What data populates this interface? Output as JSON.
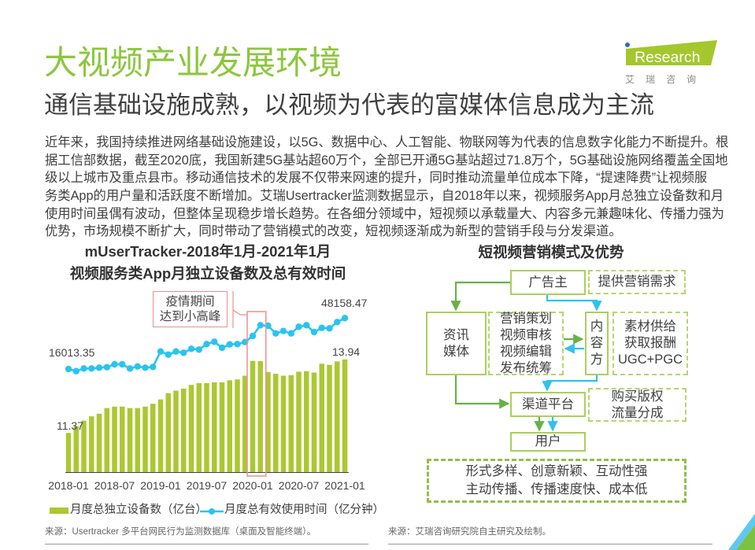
{
  "header": {
    "title": "大视频产业发展环境",
    "subtitle": "通信基础设施成熟，以视频为代表的富媒体信息成为主流"
  },
  "logo": {
    "prefix": "i",
    "brand": "Research",
    "cn": "艾瑞咨询"
  },
  "body": {
    "lines": [
      "近年来，我国持续推进网络基础设施建设，以5G、数据中心、人工智能、物联网等为代表的信息数字化能力不断提升。根",
      "据工信部数据，截至2020底，我国新建5G基站超60万个，全部已开通5G基站超过71.8万个，5G基础设施网络覆盖全国地",
      "级以上城市及重点县市。移动通信技术的发展不仅带来网速的提升，同时推动流量单位成本下降，“提速降费”让视频服",
      "务类App的用户量和活跃度不断增加。艾瑞Usertracker监测数据显示，自2018年以来，视频服务App月总独立设备数和月",
      "使用时间虽偶有波动，但整体呈现稳步增长趋势。在各细分领域中，短视频以承载量大、内容多元兼趣味化、传播力强为",
      "优势，市场规模不断扩大，同时带动了营销模式的改变，短视频逐渐成为新型的营销手段与分发渠道。"
    ]
  },
  "left_chart": {
    "title_line1": "mUserTracker-2018年1月-2021年1月",
    "title_line2": "视频服务类App月独立设备数及总有效时间",
    "annotation_line1": "疫情期间",
    "annotation_line2": "达到小高峰",
    "labels": {
      "line_first": "16013.35",
      "line_last": "48158.47",
      "bar_first": "11.37",
      "bar_last": "13.94"
    },
    "legend": {
      "bars": "月度总独立设备数（亿台）",
      "line": "月度总有效使用时间（亿分钟）"
    },
    "source": "来源：Usertracker 多平台网民行为监测数据库（桌面及智能终端）。"
  },
  "right_diagram": {
    "title": "短视频营销模式及优势",
    "advertiser": "广告主",
    "advertiser_note": "提供营销需求",
    "media": [
      "资讯",
      "媒体"
    ],
    "media_note": [
      "营销策划",
      "视频审核",
      "视频编辑",
      "发布统筹"
    ],
    "content": [
      "内",
      "容",
      "方"
    ],
    "content_note": [
      "素材供给",
      "获取报酬",
      "UGC+PGC"
    ],
    "channel": "渠道平台",
    "channel_note": [
      "购买版权",
      "流量分成"
    ],
    "user": "用户",
    "advantages": [
      "形式多样、创意新颖、互动性强",
      "主动传播、传播速度快、成本低"
    ],
    "source": "来源：艾瑞咨询研究院自主研究及绘制。"
  },
  "colors": {
    "title_green": "#8dc63f",
    "bar_green": "#abc832",
    "line_blue": "#29c4f1",
    "highlight_red": "#ee8f8f",
    "arrow_green": "#69b146",
    "arrow_blue": "#2ec3ef",
    "logo_green": "#a3c72c",
    "logo_dot_blue": "#2f6db5"
  },
  "chart_data": {
    "type": "bar+line",
    "title": "mUserTracker-2018年1月-2021年1月 视频服务类App月独立设备数及总有效时间",
    "xlabel": "",
    "ylabel": "",
    "categories": [
      "2018-01",
      "2018-02",
      "2018-03",
      "2018-04",
      "2018-05",
      "2018-06",
      "2018-07",
      "2018-08",
      "2018-09",
      "2018-10",
      "2018-11",
      "2018-12",
      "2019-01",
      "2019-02",
      "2019-03",
      "2019-04",
      "2019-05",
      "2019-06",
      "2019-07",
      "2019-08",
      "2019-09",
      "2019-10",
      "2019-11",
      "2019-12",
      "2020-01",
      "2020-02",
      "2020-03",
      "2020-04",
      "2020-05",
      "2020-06",
      "2020-07",
      "2020-08",
      "2020-09",
      "2020-10",
      "2020-11",
      "2020-12",
      "2021-01"
    ],
    "x_tick_labels": [
      "2018-01",
      "2018-07",
      "2019-01",
      "2019-07",
      "2020-01",
      "2020-07",
      "2021-01"
    ],
    "series": [
      {
        "name": "月度总独立设备数（亿台）",
        "type": "bar",
        "axis": "primary",
        "values": [
          11.37,
          11.6,
          11.8,
          11.95,
          12.04,
          12.24,
          12.29,
          12.29,
          12.24,
          12.24,
          12.29,
          12.39,
          12.54,
          12.76,
          12.85,
          12.92,
          13.05,
          13.11,
          13.11,
          13.14,
          13.14,
          13.21,
          13.24,
          13.37,
          13.89,
          13.88,
          13.5,
          13.44,
          13.37,
          13.39,
          13.51,
          13.53,
          13.48,
          13.79,
          13.75,
          13.87,
          13.94
        ]
      },
      {
        "name": "月度总有效使用时间（亿分钟）",
        "type": "line",
        "axis": "secondary",
        "values": [
          16013.35,
          14672,
          16361,
          16361,
          16858,
          17156,
          18994,
          18994,
          16361,
          17653,
          16858,
          17355,
          27092,
          25105,
          27092,
          26297,
          28781,
          28284,
          31762,
          33252,
          29427,
          31563,
          31762,
          33053,
          36879,
          43685,
          43337,
          38518,
          40008,
          38518,
          42691,
          43685,
          39363,
          41996,
          41698,
          45672,
          48158.47
        ]
      }
    ],
    "data_labels": [
      {
        "series": 0,
        "index": 0,
        "text": "11.37"
      },
      {
        "series": 0,
        "index": 36,
        "text": "13.94"
      },
      {
        "series": 1,
        "index": 0,
        "text": "16013.35"
      },
      {
        "series": 1,
        "index": 36,
        "text": "48158.47"
      }
    ],
    "annotations": [
      {
        "text": "疫情期间 达到小高峰",
        "highlight_range": [
          "2020-01",
          "2020-02"
        ]
      }
    ],
    "ylim": [
      10,
      15.64
    ],
    "y2lim": [
      -49068,
      52776
    ],
    "grid": false,
    "legend_position": "bottom"
  }
}
